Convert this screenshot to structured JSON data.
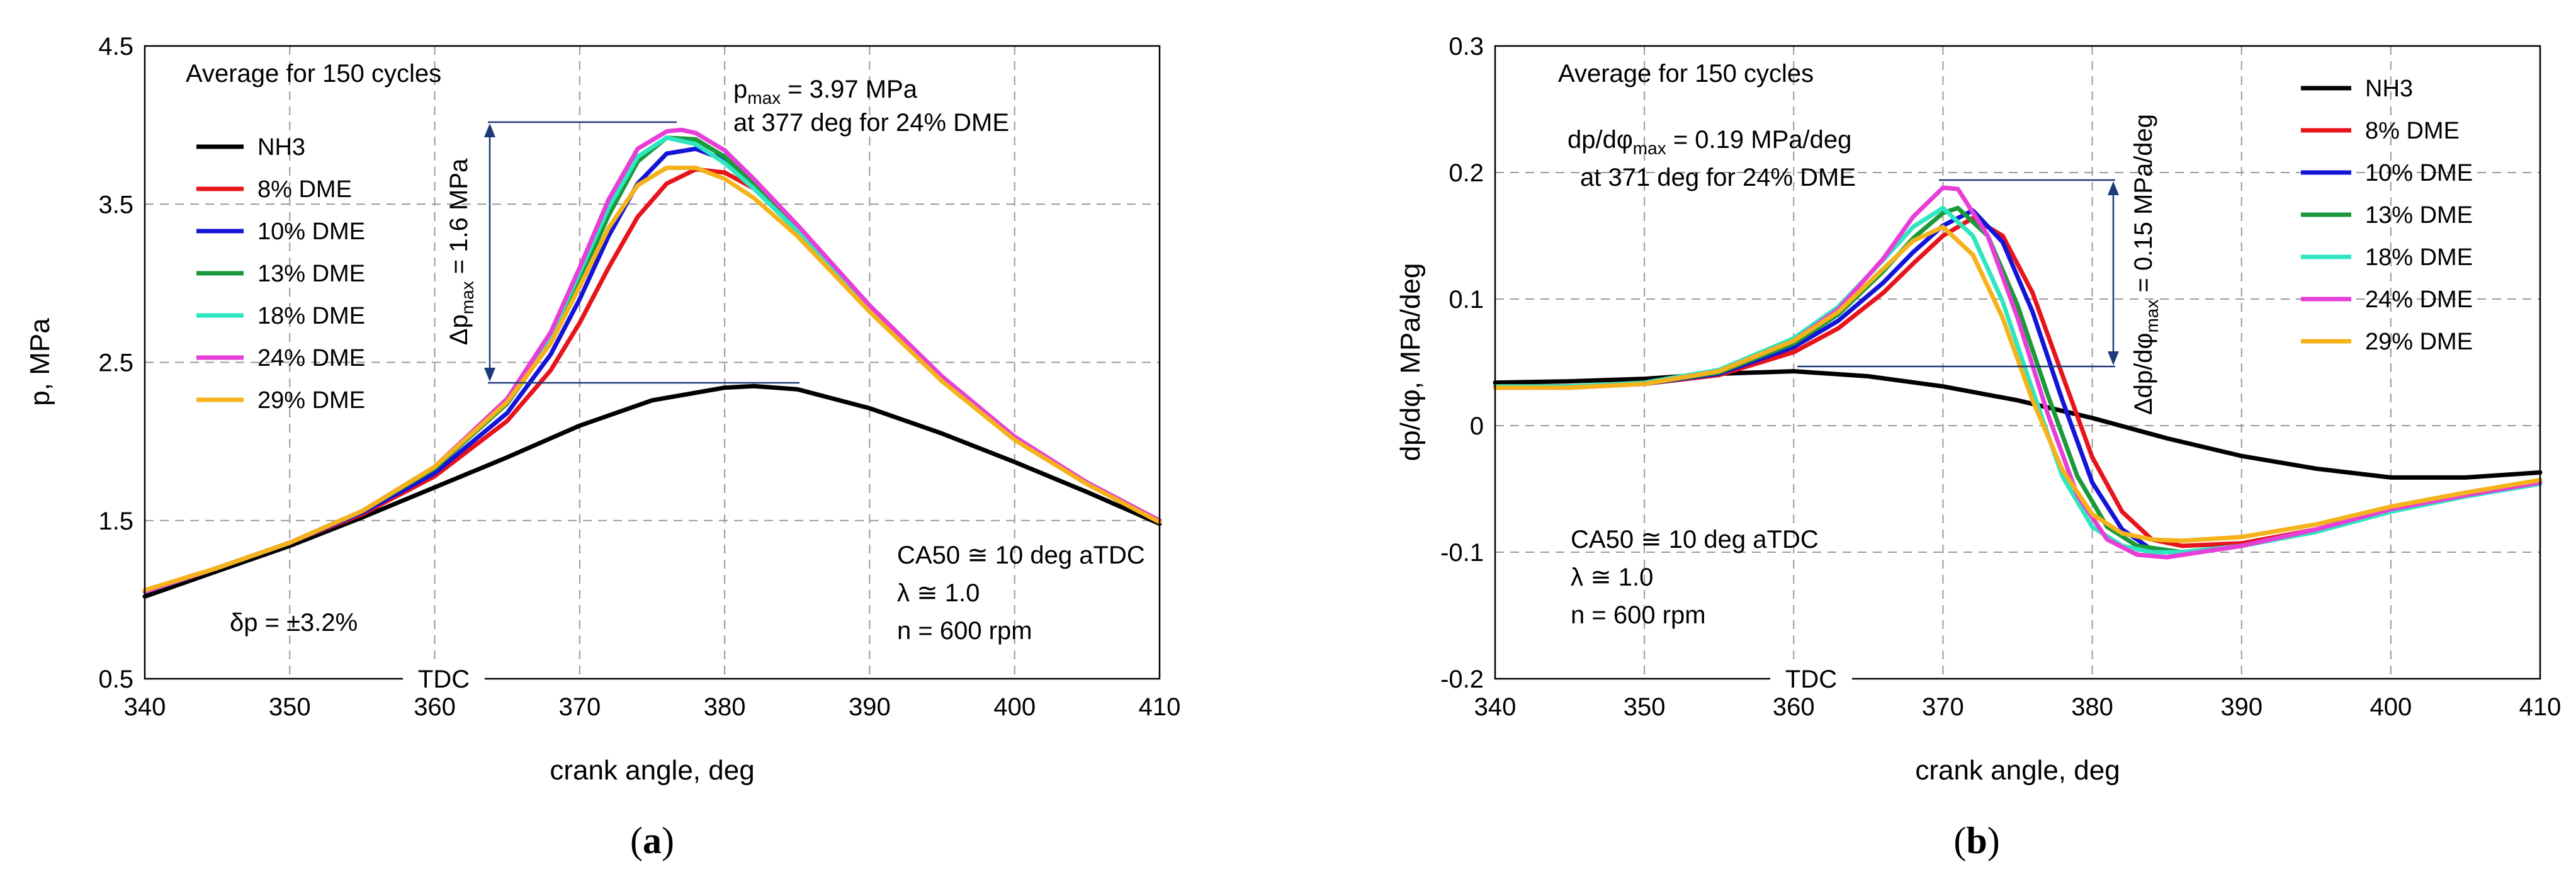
{
  "chart_data": [
    {
      "type": "line",
      "panel_label": "(a)",
      "panel_letter": "a",
      "xlabel": "crank angle, deg",
      "ylabel": "p, MPa",
      "xlim": [
        340,
        410
      ],
      "ylim": [
        0.5,
        4.5
      ],
      "xticks": [
        "340",
        "350",
        "360",
        "370",
        "380",
        "390",
        "400",
        "410"
      ],
      "yticks": [
        "0.5",
        "1.5",
        "2.5",
        "3.5",
        "4.5"
      ],
      "grid": true,
      "tdc_label": "TDC",
      "legend_position": "top-left",
      "annotations": {
        "average": "Average for 150 cycles",
        "pmax_prefix": "p",
        "pmax_sub": "max",
        "pmax_value": " = 3.97 MPa",
        "pmax_line2": "at 377 deg for 24% DME",
        "delta_prefix": "Δp",
        "delta_sub": "max",
        "delta_value": " = 1.6 MPa",
        "cond1": "CA50 ≅ 10 deg aTDC",
        "cond2": "λ ≅ 1.0",
        "cond3": "n = 600 rpm",
        "uncertainty": "δp = ±3.2%"
      },
      "series": [
        {
          "name": "NH3",
          "color": "#000000",
          "x": [
            340,
            345,
            350,
            355,
            360,
            365,
            370,
            375,
            380,
            382,
            385,
            390,
            395,
            400,
            405,
            410
          ],
          "y": [
            1.02,
            1.18,
            1.34,
            1.52,
            1.71,
            1.9,
            2.1,
            2.26,
            2.34,
            2.35,
            2.33,
            2.21,
            2.05,
            1.87,
            1.68,
            1.48
          ]
        },
        {
          "name": "8% DME",
          "color": "#e8141c",
          "x": [
            340,
            345,
            350,
            355,
            360,
            365,
            368,
            370,
            372,
            374,
            376,
            378,
            380,
            382,
            385,
            390,
            395,
            400,
            405,
            410
          ],
          "y": [
            1.05,
            1.2,
            1.36,
            1.54,
            1.78,
            2.13,
            2.45,
            2.75,
            3.1,
            3.42,
            3.63,
            3.72,
            3.7,
            3.6,
            3.35,
            2.85,
            2.4,
            2.02,
            1.74,
            1.5
          ]
        },
        {
          "name": "10% DME",
          "color": "#1414d8",
          "x": [
            340,
            345,
            350,
            355,
            360,
            365,
            368,
            370,
            372,
            374,
            376,
            378,
            380,
            382,
            385,
            390,
            395,
            400,
            405,
            410
          ],
          "y": [
            1.05,
            1.2,
            1.36,
            1.55,
            1.8,
            2.18,
            2.55,
            2.9,
            3.3,
            3.63,
            3.82,
            3.85,
            3.78,
            3.63,
            3.35,
            2.85,
            2.4,
            2.02,
            1.74,
            1.5
          ]
        },
        {
          "name": "13% DME",
          "color": "#1a9a3a",
          "x": [
            340,
            345,
            350,
            355,
            360,
            365,
            368,
            370,
            372,
            374,
            376,
            378,
            380,
            382,
            385,
            390,
            395,
            400,
            405,
            410
          ],
          "y": [
            1.05,
            1.2,
            1.36,
            1.56,
            1.83,
            2.24,
            2.63,
            3.02,
            3.43,
            3.77,
            3.92,
            3.91,
            3.8,
            3.63,
            3.35,
            2.85,
            2.4,
            2.02,
            1.74,
            1.5
          ]
        },
        {
          "name": "18% DME",
          "color": "#2ee6c0",
          "x": [
            340,
            345,
            350,
            355,
            360,
            365,
            368,
            370,
            372,
            374,
            376,
            378,
            380,
            382,
            385,
            390,
            395,
            400,
            405,
            410
          ],
          "y": [
            1.05,
            1.2,
            1.36,
            1.56,
            1.84,
            2.26,
            2.67,
            3.07,
            3.48,
            3.8,
            3.92,
            3.88,
            3.76,
            3.6,
            3.33,
            2.84,
            2.4,
            2.02,
            1.74,
            1.5
          ]
        },
        {
          "name": "24% DME",
          "color": "#e83ed8",
          "x": [
            340,
            345,
            350,
            355,
            360,
            365,
            368,
            370,
            372,
            374,
            376,
            377,
            378,
            380,
            382,
            385,
            390,
            395,
            400,
            405,
            410
          ],
          "y": [
            1.05,
            1.2,
            1.36,
            1.56,
            1.84,
            2.27,
            2.69,
            3.1,
            3.53,
            3.85,
            3.96,
            3.97,
            3.95,
            3.84,
            3.66,
            3.37,
            2.86,
            2.41,
            2.03,
            1.74,
            1.5
          ]
        },
        {
          "name": "29% DME",
          "color": "#f5b21a",
          "x": [
            340,
            345,
            350,
            355,
            360,
            365,
            368,
            370,
            372,
            374,
            376,
            378,
            380,
            382,
            385,
            390,
            395,
            400,
            405,
            410
          ],
          "y": [
            1.06,
            1.2,
            1.36,
            1.56,
            1.84,
            2.25,
            2.62,
            2.98,
            3.35,
            3.62,
            3.73,
            3.73,
            3.66,
            3.54,
            3.3,
            2.82,
            2.38,
            2.01,
            1.73,
            1.49
          ]
        }
      ]
    },
    {
      "type": "line",
      "panel_label": "(b)",
      "panel_letter": "b",
      "xlabel": "crank angle, deg",
      "ylabel": "dp/dφ, MPa/deg",
      "xlim": [
        340,
        410
      ],
      "ylim": [
        -0.2,
        0.3
      ],
      "xticks": [
        "340",
        "350",
        "360",
        "370",
        "380",
        "390",
        "400",
        "410"
      ],
      "yticks": [
        "-0.2",
        "-0.1",
        "0",
        "0.1",
        "0.2",
        "0.3"
      ],
      "grid": true,
      "tdc_label": "TDC",
      "legend_position": "top-right",
      "annotations": {
        "average": "Average for 150 cycles",
        "dpmax_prefix": "dp/dφ",
        "dpmax_sub": "max",
        "dpmax_value": " = 0.19 MPa/deg",
        "dpmax_line2": "at 371 deg for 24% DME",
        "delta_prefix": "Δdp/dφ",
        "delta_sub": "max",
        "delta_value": " = 0.15 MPa/deg",
        "cond1": "CA50 ≅ 10 deg aTDC",
        "cond2": "λ ≅ 1.0",
        "cond3": "n = 600 rpm"
      },
      "series": [
        {
          "name": "NH3",
          "color": "#000000",
          "x": [
            340,
            345,
            350,
            355,
            360,
            365,
            370,
            375,
            380,
            385,
            390,
            395,
            400,
            405,
            410
          ],
          "y": [
            0.034,
            0.035,
            0.037,
            0.041,
            0.043,
            0.039,
            0.031,
            0.02,
            0.006,
            -0.01,
            -0.024,
            -0.034,
            -0.041,
            -0.041,
            -0.037
          ]
        },
        {
          "name": "8% DME",
          "color": "#e8141c",
          "x": [
            340,
            345,
            350,
            355,
            360,
            363,
            366,
            368,
            370,
            372,
            374,
            376,
            378,
            380,
            382,
            384,
            386,
            390,
            395,
            400,
            405,
            410
          ],
          "y": [
            0.031,
            0.031,
            0.033,
            0.04,
            0.058,
            0.077,
            0.105,
            0.128,
            0.15,
            0.164,
            0.15,
            0.105,
            0.04,
            -0.025,
            -0.068,
            -0.09,
            -0.095,
            -0.093,
            -0.082,
            -0.066,
            -0.055,
            -0.045
          ]
        },
        {
          "name": "10% DME",
          "color": "#1414d8",
          "x": [
            340,
            345,
            350,
            355,
            360,
            363,
            366,
            368,
            370,
            372,
            374,
            376,
            378,
            380,
            382,
            384,
            386,
            390,
            395,
            400,
            405,
            410
          ],
          "y": [
            0.031,
            0.031,
            0.033,
            0.041,
            0.062,
            0.083,
            0.113,
            0.137,
            0.158,
            0.17,
            0.145,
            0.09,
            0.02,
            -0.045,
            -0.082,
            -0.098,
            -0.1,
            -0.095,
            -0.083,
            -0.067,
            -0.055,
            -0.045
          ]
        },
        {
          "name": "13% DME",
          "color": "#1a9a3a",
          "x": [
            340,
            345,
            350,
            355,
            360,
            363,
            366,
            368,
            370,
            371,
            373,
            375,
            377,
            379,
            381,
            383,
            386,
            390,
            395,
            400,
            405,
            410
          ],
          "y": [
            0.031,
            0.031,
            0.033,
            0.042,
            0.065,
            0.088,
            0.122,
            0.148,
            0.168,
            0.172,
            0.15,
            0.095,
            0.025,
            -0.04,
            -0.08,
            -0.095,
            -0.1,
            -0.095,
            -0.083,
            -0.067,
            -0.055,
            -0.045
          ]
        },
        {
          "name": "18% DME",
          "color": "#2ee6c0",
          "x": [
            340,
            345,
            350,
            355,
            360,
            363,
            366,
            368,
            370,
            372,
            374,
            376,
            378,
            380,
            382,
            384,
            386,
            390,
            395,
            400,
            405,
            410
          ],
          "y": [
            0.031,
            0.031,
            0.034,
            0.044,
            0.069,
            0.094,
            0.131,
            0.157,
            0.172,
            0.15,
            0.098,
            0.028,
            -0.04,
            -0.08,
            -0.095,
            -0.1,
            -0.1,
            -0.095,
            -0.084,
            -0.068,
            -0.056,
            -0.046
          ]
        },
        {
          "name": "24% DME",
          "color": "#e83ed8",
          "x": [
            340,
            345,
            350,
            355,
            360,
            363,
            366,
            368,
            370,
            371,
            373,
            375,
            377,
            379,
            381,
            383,
            385,
            390,
            395,
            400,
            405,
            410
          ],
          "y": [
            0.03,
            0.03,
            0.033,
            0.043,
            0.067,
            0.092,
            0.132,
            0.165,
            0.188,
            0.187,
            0.15,
            0.085,
            0.01,
            -0.055,
            -0.09,
            -0.102,
            -0.104,
            -0.095,
            -0.082,
            -0.066,
            -0.055,
            -0.045
          ]
        },
        {
          "name": "29% DME",
          "color": "#f5b21a",
          "x": [
            340,
            345,
            350,
            355,
            360,
            363,
            366,
            368,
            370,
            372,
            374,
            376,
            378,
            380,
            382,
            384,
            386,
            390,
            395,
            400,
            405,
            410
          ],
          "y": [
            0.03,
            0.03,
            0.033,
            0.043,
            0.067,
            0.09,
            0.124,
            0.146,
            0.157,
            0.135,
            0.085,
            0.02,
            -0.035,
            -0.07,
            -0.085,
            -0.09,
            -0.091,
            -0.088,
            -0.078,
            -0.064,
            -0.053,
            -0.043
          ]
        }
      ]
    }
  ]
}
